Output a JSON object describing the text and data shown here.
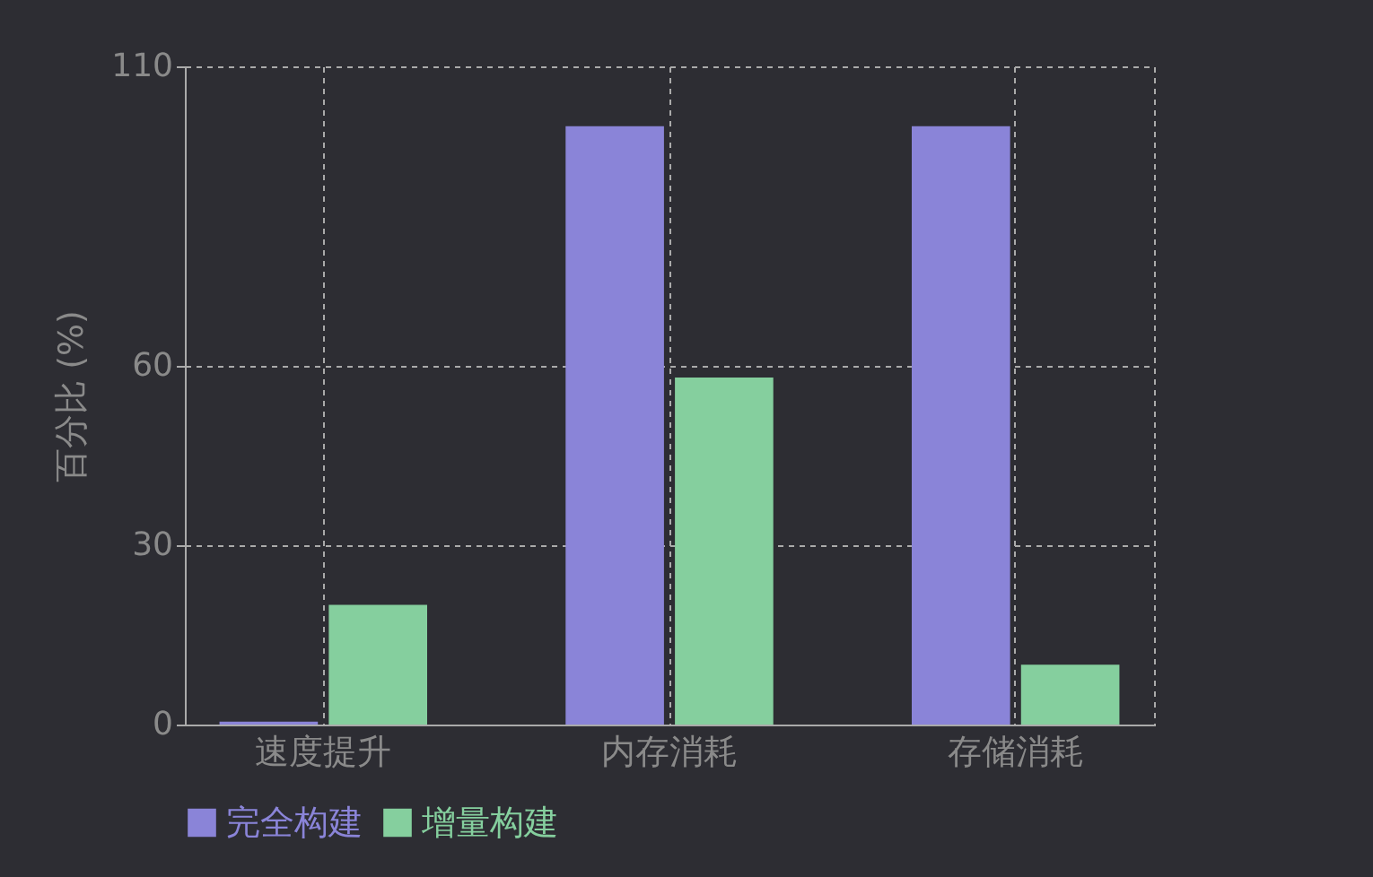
{
  "chart_data": {
    "type": "bar",
    "ylabel": "百分比 (%)",
    "categories": [
      "速度提升",
      "内存消耗",
      "存储消耗"
    ],
    "series": [
      {
        "name": "完全构建",
        "color": "#8a84d8",
        "values": [
          0.5,
          100,
          100
        ]
      },
      {
        "name": "增量构建",
        "color": "#85cf9e",
        "values": [
          20,
          58,
          10
        ]
      }
    ],
    "ylim": [
      0,
      110
    ],
    "yticks": [
      0,
      30,
      60,
      110
    ],
    "grid": true,
    "legend": "bottom"
  }
}
